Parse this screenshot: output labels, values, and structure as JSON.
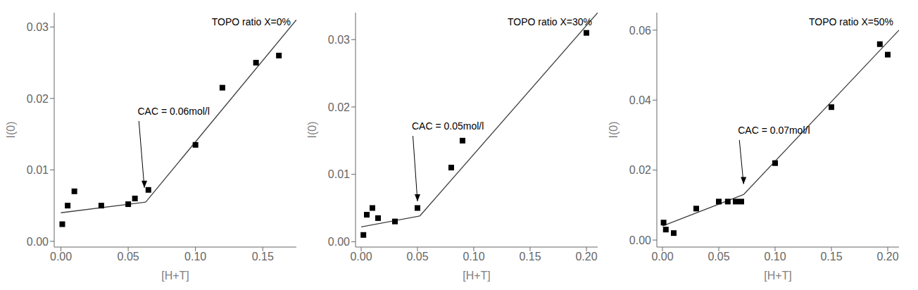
{
  "chart_data": [
    {
      "type": "scatter",
      "title": "TOPO ratio X=0%",
      "xlabel": "[H+T]",
      "ylabel": "I(0)",
      "xlim": [
        -0.005,
        0.175
      ],
      "ylim": [
        -0.0008,
        0.032
      ],
      "xticks": [
        {
          "value": 0,
          "label": "0.00"
        },
        0.05,
        {
          "value": 0.1,
          "label": "0.10"
        },
        0.15
      ],
      "yticks": [
        {
          "value": 0,
          "label": "0.00"
        },
        0.01,
        0.02,
        0.03
      ],
      "series": [
        {
          "type": "scatter",
          "marker": "square",
          "color": "#000000",
          "x": [
            0.001,
            0.005,
            0.01,
            0.03,
            0.05,
            0.055,
            0.065,
            0.1,
            0.12,
            0.145,
            0.162
          ],
          "values": [
            0.0024,
            0.005,
            0.007,
            0.005,
            0.0052,
            0.006,
            0.0072,
            0.0135,
            0.0215,
            0.025,
            0.026
          ]
        },
        {
          "type": "line",
          "color": "#404040",
          "x": [
            0.0,
            0.063
          ],
          "values": [
            0.004,
            0.0055
          ]
        },
        {
          "type": "line",
          "color": "#404040",
          "x": [
            0.063,
            0.175
          ],
          "values": [
            0.0055,
            0.031
          ]
        }
      ],
      "annotations": [
        {
          "text": "CAC = 0.06mol/l",
          "x": 0.062,
          "y": 0.0075,
          "text_x": 0.057,
          "text_y": 0.019
        }
      ]
    },
    {
      "type": "scatter",
      "title": "TOPO ratio X=30%",
      "xlabel": "[H+T]",
      "ylabel": "I(0)",
      "xlim": [
        -0.005,
        0.21
      ],
      "ylim": [
        -0.0008,
        0.034
      ],
      "xticks": [
        {
          "value": 0,
          "label": "0.00"
        },
        0.05,
        {
          "value": 0.1,
          "label": "0.10"
        },
        0.15,
        {
          "value": 0.2,
          "label": "0.20"
        }
      ],
      "yticks": [
        {
          "value": 0,
          "label": "0.00"
        },
        0.01,
        0.02,
        0.03
      ],
      "series": [
        {
          "type": "scatter",
          "marker": "square",
          "color": "#000000",
          "x": [
            0.002,
            0.005,
            0.01,
            0.015,
            0.03,
            0.05,
            0.08,
            0.09,
            0.2
          ],
          "values": [
            0.001,
            0.004,
            0.005,
            0.0035,
            0.003,
            0.005,
            0.011,
            0.015,
            0.031
          ]
        },
        {
          "type": "line",
          "color": "#404040",
          "x": [
            0.0,
            0.052
          ],
          "values": [
            0.0022,
            0.0038
          ]
        },
        {
          "type": "line",
          "color": "#404040",
          "x": [
            0.052,
            0.21
          ],
          "values": [
            0.0038,
            0.034
          ]
        }
      ],
      "annotations": [
        {
          "text": "CAC = 0.05mol/l",
          "x": 0.05,
          "y": 0.006,
          "text_x": 0.045,
          "text_y": 0.018
        }
      ]
    },
    {
      "type": "scatter",
      "title": "TOPO ratio X=50%",
      "xlabel": "[H+T]",
      "ylabel": "I(0)",
      "xlim": [
        -0.005,
        0.21
      ],
      "ylim": [
        -0.002,
        0.065
      ],
      "xticks": [
        {
          "value": 0,
          "label": "0.00"
        },
        0.05,
        {
          "value": 0.1,
          "label": "0.10"
        },
        0.15,
        {
          "value": 0.2,
          "label": "0.20"
        }
      ],
      "yticks": [
        {
          "value": 0,
          "label": "0.00"
        },
        0.02,
        0.04,
        0.06
      ],
      "series": [
        {
          "type": "scatter",
          "marker": "square",
          "color": "#000000",
          "x": [
            0.001,
            0.003,
            0.01,
            0.03,
            0.05,
            0.058,
            0.065,
            0.07,
            0.1,
            0.15,
            0.193,
            0.2
          ],
          "values": [
            0.005,
            0.003,
            0.002,
            0.009,
            0.011,
            0.011,
            0.011,
            0.011,
            0.022,
            0.038,
            0.056,
            0.053
          ]
        },
        {
          "type": "line",
          "color": "#404040",
          "x": [
            0.0,
            0.072
          ],
          "values": [
            0.004,
            0.013
          ]
        },
        {
          "type": "line",
          "color": "#404040",
          "x": [
            0.072,
            0.21
          ],
          "values": [
            0.013,
            0.06
          ]
        }
      ],
      "annotations": [
        {
          "text": "CAC = 0.07mol/l",
          "x": 0.072,
          "y": 0.016,
          "text_x": 0.067,
          "text_y": 0.033
        }
      ]
    }
  ]
}
